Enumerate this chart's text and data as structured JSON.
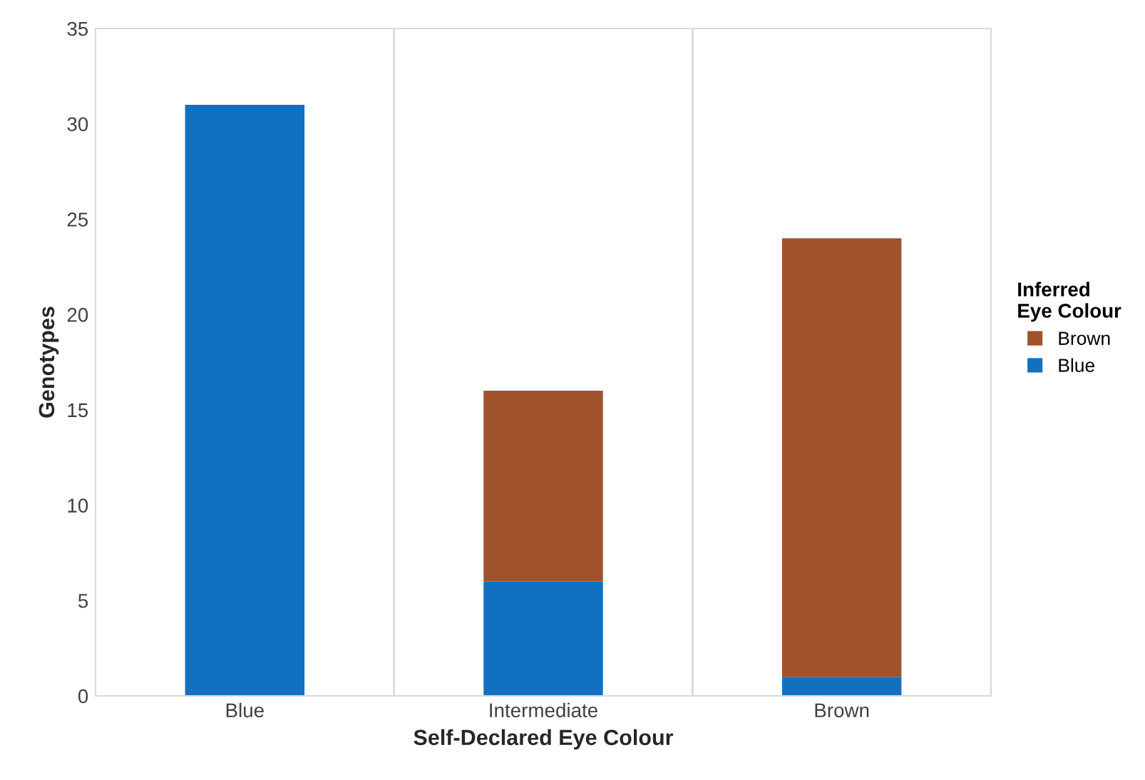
{
  "chart_data": {
    "type": "bar",
    "stacked": true,
    "xlabel": "Self-Declared Eye Colour",
    "ylabel": "Genotypes",
    "legend_title": "Inferred\nEye Colour",
    "legend": "right",
    "categories": [
      "Blue",
      "Intermediate",
      "Brown"
    ],
    "series": [
      {
        "name": "Blue",
        "color": "#1170c0",
        "values": [
          31,
          6,
          1
        ]
      },
      {
        "name": "Brown",
        "color": "#a0522d",
        "values": [
          0,
          10,
          23
        ]
      }
    ],
    "ylim": [
      0,
      35
    ],
    "yticks": [
      0,
      5,
      10,
      15,
      20,
      25,
      30,
      35
    ],
    "grid": "x"
  }
}
